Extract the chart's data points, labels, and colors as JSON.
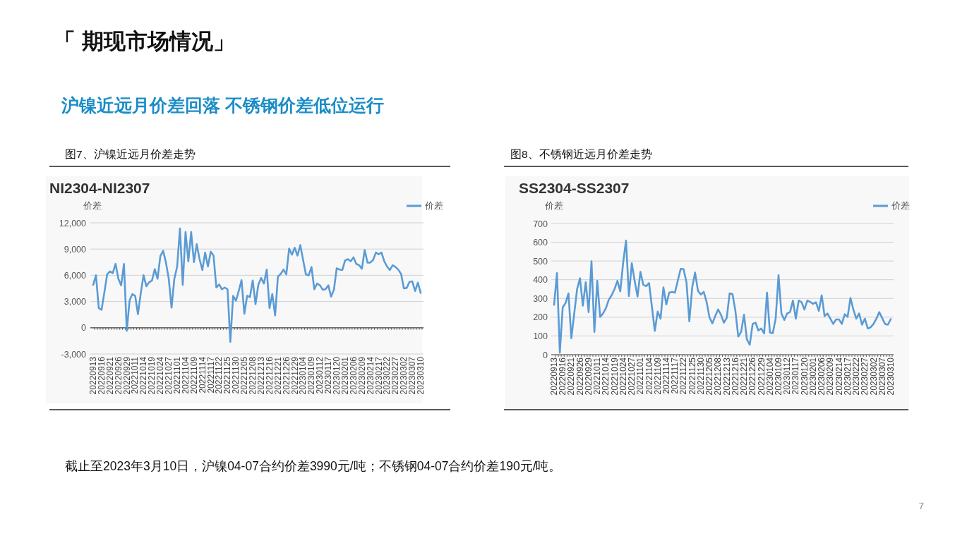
{
  "chart_data": [
    {
      "type": "line",
      "title": "NI2304-NI2307",
      "subtitle": "图7、沪镍近远月价差走势",
      "ylabel": "价差",
      "annotations": [
        "「 期现市场情况」",
        "沪镍近远月价差回落 不锈钢价差低位运行",
        "截止至2023年3月10日，沪镍04-07合约价差3990元/吨；不锈钢04-07合约价差190元/吨。",
        "7"
      ],
      "categories": [
        "20220913",
        null,
        null,
        "20220916",
        null,
        null,
        "20220921",
        null,
        null,
        "20220926",
        null,
        null,
        "20220929",
        null,
        null,
        "20221011",
        null,
        null,
        "20221014",
        null,
        null,
        "20221019",
        null,
        null,
        "20221024",
        null,
        null,
        "20221027",
        null,
        null,
        "20221101",
        null,
        null,
        "20221104",
        null,
        null,
        "20221109",
        null,
        null,
        "20221114",
        null,
        null,
        "20221117",
        null,
        null,
        "20221122",
        null,
        null,
        "20221125",
        null,
        null,
        "20221130",
        null,
        null,
        "20221205",
        null,
        null,
        "20221208",
        null,
        null,
        "20221213",
        null,
        null,
        "20221216",
        null,
        null,
        "20221221",
        null,
        null,
        "20221226",
        null,
        null,
        "20221229",
        null,
        null,
        "20230104",
        null,
        null,
        "20230109",
        null,
        null,
        "20230112",
        null,
        null,
        "20230117",
        null,
        null,
        "20230120",
        null,
        null,
        "20230201",
        null,
        null,
        "20230206",
        null,
        null,
        "20230209",
        null,
        null,
        "20230214",
        null,
        null,
        "20230217",
        null,
        null,
        "20230222",
        null,
        null,
        "20230227",
        null,
        null,
        "20230302",
        null,
        null,
        "20230307",
        null,
        null,
        "20230310"
      ],
      "series": [
        {
          "name": "价差",
          "color": "#5b9bd5",
          "values": [
            4900,
            6000,
            2250,
            2050,
            4050,
            6100,
            6450,
            6250,
            7300,
            5600,
            4850,
            7300,
            -350,
            3100,
            3850,
            3650,
            1550,
            3950,
            6000,
            4750,
            5200,
            5400,
            6700,
            5600,
            8200,
            8800,
            7450,
            5600,
            2300,
            5600,
            7000,
            11350,
            4900,
            10950,
            7600,
            10950,
            7500,
            9550,
            7850,
            6600,
            8600,
            7000,
            8700,
            8250,
            4600,
            4950,
            4400,
            4600,
            4400,
            -1600,
            3650,
            3100,
            4200,
            5450,
            1600,
            3650,
            3500,
            5400,
            2700,
            4900,
            5700,
            5050,
            6650,
            2250,
            3850,
            1400,
            5850,
            6150,
            6650,
            6100,
            9050,
            8350,
            9150,
            8250,
            9450,
            7750,
            6100,
            6000,
            6950,
            4400,
            5050,
            4850,
            4350,
            4400,
            4850,
            3550,
            4350,
            6800,
            6650,
            6600,
            7700,
            7850,
            7600,
            8050,
            7300,
            7150,
            6750,
            8900,
            7450,
            7450,
            7750,
            8600,
            8400,
            8600,
            7600,
            7000,
            6600,
            7150,
            6950,
            6650,
            6150,
            4500,
            4550,
            5250,
            5300,
            4200,
            5150,
            3990
          ]
        }
      ],
      "ylim": [
        -3000,
        12000
      ],
      "yticks": [
        {
          "value": -3000,
          "label": "-3,000"
        },
        0,
        {
          "value": 3000,
          "label": "3,000"
        },
        {
          "value": 6000,
          "label": "6,000"
        },
        {
          "value": 9000,
          "label": "9,000"
        },
        {
          "value": 12000,
          "label": "12,000"
        }
      ],
      "grid": "y",
      "legend": "top right",
      "marker": "none",
      "line_style": "solid"
    },
    {
      "type": "line",
      "title": "SS2304-SS2307",
      "subtitle": "图8、不锈钢近远月价差走势",
      "ylabel": "价差",
      "categories": [
        "20220913",
        null,
        null,
        "20220916",
        null,
        null,
        "20220921",
        null,
        null,
        "20220926",
        null,
        null,
        "20220929",
        null,
        null,
        "20221011",
        null,
        null,
        "20221014",
        null,
        null,
        "20221019",
        null,
        null,
        "20221024",
        null,
        null,
        "20221027",
        null,
        null,
        "20221101",
        null,
        null,
        "20221104",
        null,
        null,
        "20221109",
        null,
        null,
        "20221114",
        null,
        null,
        "20221117",
        null,
        null,
        "20221122",
        null,
        null,
        "20221125",
        null,
        null,
        "20221130",
        null,
        null,
        "20221205",
        null,
        null,
        "20221208",
        null,
        null,
        "20221213",
        null,
        null,
        "20221216",
        null,
        null,
        "20221221",
        null,
        null,
        "20221226",
        null,
        null,
        "20221229",
        null,
        null,
        "20230104",
        null,
        null,
        "20230109",
        null,
        null,
        "20230112",
        null,
        null,
        "20230117",
        null,
        null,
        "20230120",
        null,
        null,
        "20230201",
        null,
        null,
        "20230206",
        null,
        null,
        "20230209",
        null,
        null,
        "20230214",
        null,
        null,
        "20230217",
        null,
        null,
        "20230222",
        null,
        null,
        "20230227",
        null,
        null,
        "20230302",
        null,
        null,
        "20230307",
        null,
        null,
        "20230310"
      ],
      "series": [
        {
          "name": "价差",
          "color": "#5b9bd5",
          "values": [
            266,
            435,
            11,
            252,
            276,
            327,
            88,
            220,
            350,
            408,
            262,
            387,
            227,
            498,
            122,
            394,
            202,
            220,
            248,
            293,
            317,
            350,
            394,
            338,
            491,
            609,
            313,
            488,
            394,
            310,
            442,
            373,
            366,
            382,
            255,
            127,
            230,
            192,
            359,
            268,
            331,
            335,
            331,
            396,
            458,
            456,
            387,
            178,
            359,
            438,
            341,
            321,
            335,
            282,
            199,
            167,
            206,
            241,
            213,
            171,
            196,
            327,
            324,
            234,
            97,
            122,
            213,
            81,
            53,
            164,
            171,
            129,
            140,
            113,
            331,
            118,
            115,
            192,
            424,
            220,
            185,
            220,
            227,
            289,
            192,
            289,
            280,
            241,
            289,
            282,
            271,
            280,
            234,
            317,
            206,
            220,
            192,
            164,
            188,
            188,
            164,
            216,
            202,
            303,
            241,
            192,
            220,
            160,
            192,
            140,
            146,
            164,
            192,
            227,
            196,
            164,
            160,
            190
          ]
        }
      ],
      "ylim": [
        0,
        700
      ],
      "yticks": [
        0,
        100,
        200,
        300,
        400,
        500,
        600,
        700
      ],
      "grid": "y",
      "legend": "top right",
      "marker": "none",
      "line_style": "solid"
    }
  ]
}
